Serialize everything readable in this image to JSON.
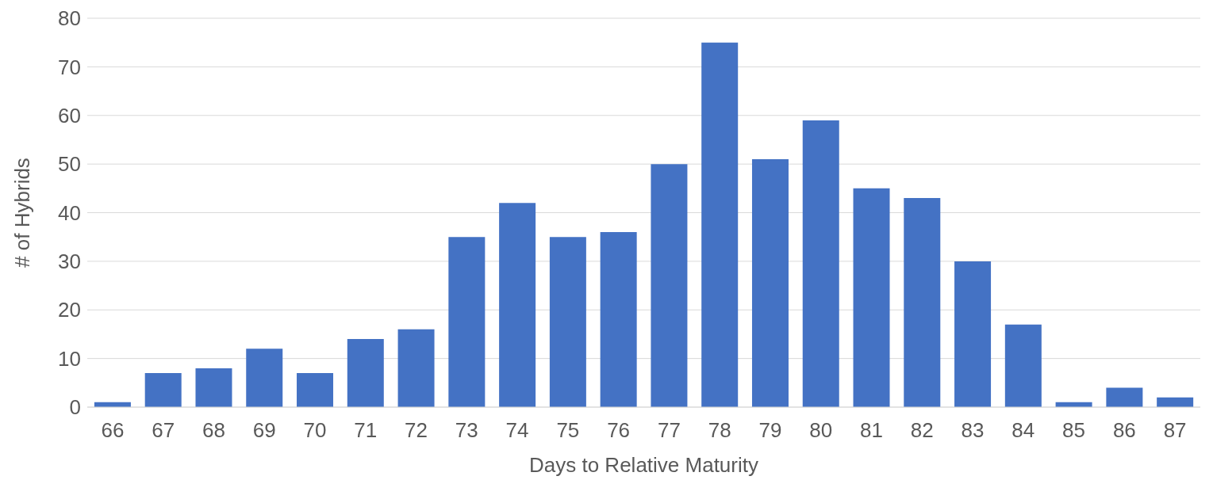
{
  "chart_data": {
    "type": "bar",
    "xlabel": "Days to Relative Maturity",
    "ylabel": "# of Hybrids",
    "categories": [
      "66",
      "67",
      "68",
      "69",
      "70",
      "71",
      "72",
      "73",
      "74",
      "75",
      "76",
      "77",
      "78",
      "79",
      "80",
      "81",
      "82",
      "83",
      "84",
      "85",
      "86",
      "87"
    ],
    "values": [
      1,
      7,
      8,
      12,
      7,
      14,
      16,
      35,
      42,
      35,
      36,
      50,
      75,
      51,
      59,
      45,
      43,
      30,
      17,
      1,
      4,
      2
    ],
    "color": "#4472c4",
    "ylim": [
      0,
      80
    ],
    "yticks": [
      0,
      10,
      20,
      30,
      40,
      50,
      60,
      70,
      80
    ],
    "grid": "y"
  }
}
